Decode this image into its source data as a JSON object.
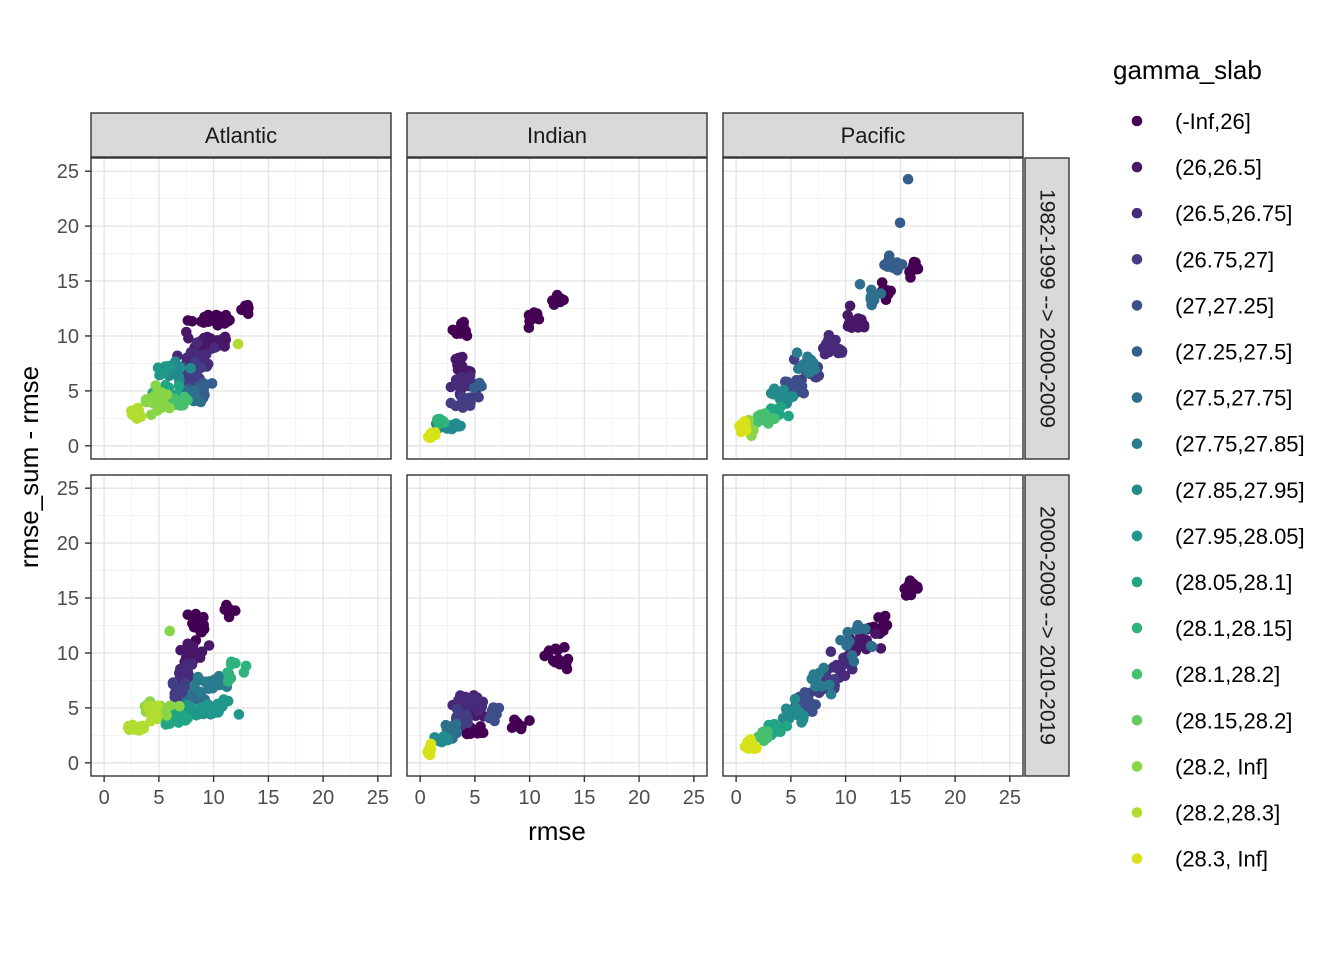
{
  "chart_data": {
    "type": "scatter",
    "facets": {
      "columns": [
        "Atlantic",
        "Indian",
        "Pacific"
      ],
      "rows": [
        "1982-1999 --> 2000-2009",
        "2000-2009 --> 2010-2019"
      ]
    },
    "xlabel": "rmse",
    "ylabel": "rmse_sum - rmse",
    "xlim": [
      -1.2,
      26.2
    ],
    "ylim": [
      -1.2,
      26.2
    ],
    "x_ticks": [
      0,
      5,
      10,
      15,
      20,
      25
    ],
    "y_ticks": [
      0,
      5,
      10,
      15,
      20,
      25
    ],
    "x_tick_labels": [
      "0",
      "5",
      "10",
      "15",
      "20",
      "25"
    ],
    "y_tick_labels": [
      "0",
      "5",
      "10",
      "15",
      "20",
      "25"
    ],
    "grid": true,
    "legend": {
      "title": "gamma_slab",
      "position": "right",
      "entries": [
        {
          "label": "(-Inf,26]",
          "color": "#440154"
        },
        {
          "label": "(26,26.5]",
          "color": "#481768"
        },
        {
          "label": "(26.5,26.75]",
          "color": "#472A7A"
        },
        {
          "label": "(26.75,27]",
          "color": "#433D84"
        },
        {
          "label": "(27,27.25]",
          "color": "#3C4F8A"
        },
        {
          "label": "(27.25,27.5]",
          "color": "#355E8D"
        },
        {
          "label": "(27.5,27.75]",
          "color": "#2E6F8E"
        },
        {
          "label": "(27.75,27.85]",
          "color": "#297B8E"
        },
        {
          "label": "(27.85,27.95]",
          "color": "#238A8D"
        },
        {
          "label": "(27.95,28.05]",
          "color": "#1F978B"
        },
        {
          "label": "(28.05,28.1]",
          "color": "#21A585"
        },
        {
          "label": "(28.1,28.15]",
          "color": "#2EB37C"
        },
        {
          "label": "(28.1,28.2]",
          "color": "#46C06F"
        },
        {
          "label": "(28.15,28.2]",
          "color": "#65CB5E"
        },
        {
          "label": "(28.2, Inf]",
          "color": "#89D548"
        },
        {
          "label": "(28.2,28.3]",
          "color": "#B0DD2F"
        },
        {
          "label": "(28.3, Inf]",
          "color": "#D8E219"
        }
      ],
      "last_color": "#FDE725"
    },
    "panels": [
      {
        "col": 0,
        "row": 0,
        "clusters": [
          {
            "g": 0,
            "cx": 10.0,
            "cy": 11.5,
            "sx": 2.0,
            "sy": 0.5,
            "n": 28
          },
          {
            "g": 0,
            "cx": 12.8,
            "cy": 12.6,
            "sx": 0.7,
            "sy": 0.6,
            "n": 8
          },
          {
            "g": 1,
            "cx": 9.5,
            "cy": 9.5,
            "sx": 1.5,
            "sy": 0.8,
            "n": 22
          },
          {
            "g": 2,
            "cx": 8.5,
            "cy": 8.0,
            "sx": 1.4,
            "sy": 1.0,
            "n": 24
          },
          {
            "g": 3,
            "cx": 8.0,
            "cy": 6.5,
            "sx": 1.2,
            "sy": 1.0,
            "n": 18
          },
          {
            "g": 5,
            "cx": 8.5,
            "cy": 5.0,
            "sx": 1.2,
            "sy": 0.8,
            "n": 18
          },
          {
            "g": 6,
            "cx": 7.5,
            "cy": 4.5,
            "sx": 1.4,
            "sy": 0.8,
            "n": 18
          },
          {
            "g": 8,
            "cx": 6.5,
            "cy": 6.8,
            "sx": 0.8,
            "sy": 0.6,
            "n": 16
          },
          {
            "g": 9,
            "cx": 5.5,
            "cy": 7.0,
            "sx": 0.7,
            "sy": 0.4,
            "n": 16
          },
          {
            "g": 10,
            "cx": 6.0,
            "cy": 5.0,
            "sx": 1.0,
            "sy": 0.8,
            "n": 16
          },
          {
            "g": 12,
            "cx": 6.5,
            "cy": 4.0,
            "sx": 1.2,
            "sy": 0.6,
            "n": 14
          },
          {
            "g": 14,
            "cx": 4.8,
            "cy": 4.0,
            "sx": 1.2,
            "sy": 1.0,
            "n": 22
          },
          {
            "g": 15,
            "cx": 3.2,
            "cy": 3.0,
            "sx": 0.6,
            "sy": 0.6,
            "n": 8
          },
          {
            "g": 15,
            "cx": 12.2,
            "cy": 9.3,
            "sx": 0.1,
            "sy": 0.1,
            "n": 1
          }
        ]
      },
      {
        "col": 1,
        "row": 0,
        "clusters": [
          {
            "g": 0,
            "cx": 3.8,
            "cy": 10.5,
            "sx": 0.6,
            "sy": 0.8,
            "n": 14
          },
          {
            "g": 0,
            "cx": 10.5,
            "cy": 11.5,
            "sx": 0.7,
            "sy": 0.6,
            "n": 8
          },
          {
            "g": 0,
            "cx": 12.5,
            "cy": 13.5,
            "sx": 0.7,
            "sy": 0.8,
            "n": 8
          },
          {
            "g": 1,
            "cx": 3.8,
            "cy": 7.5,
            "sx": 0.7,
            "sy": 0.8,
            "n": 14
          },
          {
            "g": 2,
            "cx": 4.0,
            "cy": 5.5,
            "sx": 0.9,
            "sy": 0.8,
            "n": 18
          },
          {
            "g": 3,
            "cx": 4.2,
            "cy": 4.0,
            "sx": 1.0,
            "sy": 0.7,
            "n": 16
          },
          {
            "g": 5,
            "cx": 5.5,
            "cy": 5.5,
            "sx": 0.4,
            "sy": 0.5,
            "n": 4
          },
          {
            "g": 8,
            "cx": 2.8,
            "cy": 1.8,
            "sx": 1.0,
            "sy": 0.5,
            "n": 16
          },
          {
            "g": 11,
            "cx": 2.0,
            "cy": 2.2,
            "sx": 0.5,
            "sy": 0.4,
            "n": 8
          },
          {
            "g": 16,
            "cx": 1.1,
            "cy": 1.0,
            "sx": 0.4,
            "sy": 0.3,
            "n": 12
          }
        ]
      },
      {
        "col": 2,
        "row": 0,
        "clusters": [
          {
            "g": 0,
            "cx": 16.2,
            "cy": 16.0,
            "sx": 0.7,
            "sy": 0.7,
            "n": 14
          },
          {
            "g": 0,
            "cx": 13.5,
            "cy": 14.0,
            "sx": 0.6,
            "sy": 0.6,
            "n": 8
          },
          {
            "g": 1,
            "cx": 11.0,
            "cy": 11.5,
            "sx": 1.0,
            "sy": 0.8,
            "n": 16
          },
          {
            "g": 2,
            "cx": 9.0,
            "cy": 9.0,
            "sx": 1.2,
            "sy": 1.0,
            "n": 18
          },
          {
            "g": 3,
            "cx": 7.0,
            "cy": 7.0,
            "sx": 1.2,
            "sy": 1.0,
            "n": 18
          },
          {
            "g": 4,
            "cx": 5.5,
            "cy": 5.0,
            "sx": 1.0,
            "sy": 0.8,
            "n": 16
          },
          {
            "g": 5,
            "cx": 14.0,
            "cy": 16.5,
            "sx": 1.2,
            "sy": 0.8,
            "n": 12
          },
          {
            "g": 5,
            "cx": 15.7,
            "cy": 24.3,
            "sx": 0.05,
            "sy": 0.05,
            "n": 1
          },
          {
            "g": 5,
            "cx": 15.0,
            "cy": 20.3,
            "sx": 0.05,
            "sy": 0.05,
            "n": 1
          },
          {
            "g": 6,
            "cx": 12.5,
            "cy": 14.0,
            "sx": 0.8,
            "sy": 1.2,
            "n": 10
          },
          {
            "g": 7,
            "cx": 6.5,
            "cy": 7.5,
            "sx": 1.2,
            "sy": 0.8,
            "n": 14
          },
          {
            "g": 8,
            "cx": 4.5,
            "cy": 4.5,
            "sx": 1.0,
            "sy": 0.7,
            "n": 16
          },
          {
            "g": 10,
            "cx": 3.5,
            "cy": 3.0,
            "sx": 0.8,
            "sy": 0.6,
            "n": 14
          },
          {
            "g": 12,
            "cx": 2.5,
            "cy": 2.5,
            "sx": 0.7,
            "sy": 0.6,
            "n": 12
          },
          {
            "g": 14,
            "cx": 1.3,
            "cy": 1.5,
            "sx": 0.4,
            "sy": 0.5,
            "n": 10
          },
          {
            "g": 16,
            "cx": 0.7,
            "cy": 1.8,
            "sx": 0.4,
            "sy": 0.6,
            "n": 14
          }
        ]
      },
      {
        "col": 0,
        "row": 1,
        "clusters": [
          {
            "g": 0,
            "cx": 8.5,
            "cy": 12.5,
            "sx": 1.0,
            "sy": 1.2,
            "n": 20
          },
          {
            "g": 0,
            "cx": 11.5,
            "cy": 14.0,
            "sx": 0.8,
            "sy": 0.4,
            "n": 6
          },
          {
            "g": 1,
            "cx": 8.0,
            "cy": 10.0,
            "sx": 1.0,
            "sy": 1.2,
            "n": 18
          },
          {
            "g": 2,
            "cx": 7.5,
            "cy": 8.0,
            "sx": 1.0,
            "sy": 1.0,
            "n": 18
          },
          {
            "g": 3,
            "cx": 7.0,
            "cy": 6.5,
            "sx": 1.0,
            "sy": 0.9,
            "n": 16
          },
          {
            "g": 6,
            "cx": 8.5,
            "cy": 5.5,
            "sx": 1.4,
            "sy": 1.0,
            "n": 20
          },
          {
            "g": 7,
            "cx": 10.0,
            "cy": 7.0,
            "sx": 1.8,
            "sy": 0.8,
            "n": 20
          },
          {
            "g": 9,
            "cx": 9.5,
            "cy": 5.0,
            "sx": 2.2,
            "sy": 0.9,
            "n": 28
          },
          {
            "g": 10,
            "cx": 6.5,
            "cy": 4.0,
            "sx": 1.2,
            "sy": 0.5,
            "n": 18
          },
          {
            "g": 11,
            "cx": 12.0,
            "cy": 8.5,
            "sx": 0.8,
            "sy": 0.8,
            "n": 8
          },
          {
            "g": 14,
            "cx": 5.0,
            "cy": 5.0,
            "sx": 1.2,
            "sy": 1.0,
            "n": 18
          },
          {
            "g": 14,
            "cx": 6.0,
            "cy": 12.0,
            "sx": 0.05,
            "sy": 0.05,
            "n": 1
          },
          {
            "g": 15,
            "cx": 3.0,
            "cy": 3.3,
            "sx": 0.7,
            "sy": 0.5,
            "n": 10
          },
          {
            "g": 15,
            "cx": 4.5,
            "cy": 4.5,
            "sx": 0.8,
            "sy": 0.7,
            "n": 10
          }
        ]
      },
      {
        "col": 1,
        "row": 1,
        "clusters": [
          {
            "g": 0,
            "cx": 5.0,
            "cy": 3.0,
            "sx": 1.2,
            "sy": 0.5,
            "n": 16
          },
          {
            "g": 0,
            "cx": 12.5,
            "cy": 9.5,
            "sx": 1.4,
            "sy": 0.9,
            "n": 14
          },
          {
            "g": 0,
            "cx": 9.0,
            "cy": 3.5,
            "sx": 0.8,
            "sy": 0.6,
            "n": 8
          },
          {
            "g": 1,
            "cx": 5.0,
            "cy": 5.0,
            "sx": 1.2,
            "sy": 0.8,
            "n": 18
          },
          {
            "g": 2,
            "cx": 4.5,
            "cy": 5.5,
            "sx": 1.2,
            "sy": 0.8,
            "n": 16
          },
          {
            "g": 3,
            "cx": 3.5,
            "cy": 4.0,
            "sx": 1.0,
            "sy": 0.7,
            "n": 16
          },
          {
            "g": 4,
            "cx": 7.0,
            "cy": 4.5,
            "sx": 0.8,
            "sy": 0.8,
            "n": 8
          },
          {
            "g": 6,
            "cx": 3.0,
            "cy": 3.0,
            "sx": 0.8,
            "sy": 0.6,
            "n": 14
          },
          {
            "g": 8,
            "cx": 2.0,
            "cy": 2.0,
            "sx": 0.6,
            "sy": 0.5,
            "n": 12
          },
          {
            "g": 16,
            "cx": 0.9,
            "cy": 1.1,
            "sx": 0.4,
            "sy": 0.4,
            "n": 12
          }
        ]
      },
      {
        "col": 2,
        "row": 1,
        "clusters": [
          {
            "g": 0,
            "cx": 16.0,
            "cy": 16.0,
            "sx": 0.8,
            "sy": 0.7,
            "n": 14
          },
          {
            "g": 0,
            "cx": 13.0,
            "cy": 12.5,
            "sx": 1.0,
            "sy": 1.0,
            "n": 12
          },
          {
            "g": 1,
            "cx": 11.5,
            "cy": 10.5,
            "sx": 1.2,
            "sy": 1.2,
            "n": 16
          },
          {
            "g": 2,
            "cx": 9.5,
            "cy": 8.5,
            "sx": 1.2,
            "sy": 1.2,
            "n": 16
          },
          {
            "g": 3,
            "cx": 8.0,
            "cy": 7.0,
            "sx": 1.2,
            "sy": 1.0,
            "n": 16
          },
          {
            "g": 4,
            "cx": 6.5,
            "cy": 5.5,
            "sx": 1.0,
            "sy": 1.0,
            "n": 16
          },
          {
            "g": 6,
            "cx": 10.5,
            "cy": 11.0,
            "sx": 1.2,
            "sy": 1.2,
            "n": 12
          },
          {
            "g": 7,
            "cx": 7.5,
            "cy": 7.5,
            "sx": 1.2,
            "sy": 1.0,
            "n": 12
          },
          {
            "g": 8,
            "cx": 5.0,
            "cy": 4.5,
            "sx": 1.0,
            "sy": 1.0,
            "n": 16
          },
          {
            "g": 10,
            "cx": 3.5,
            "cy": 3.0,
            "sx": 0.8,
            "sy": 0.7,
            "n": 14
          },
          {
            "g": 12,
            "cx": 2.5,
            "cy": 2.5,
            "sx": 0.6,
            "sy": 0.6,
            "n": 12
          },
          {
            "g": 16,
            "cx": 1.3,
            "cy": 1.5,
            "sx": 0.5,
            "sy": 0.6,
            "n": 16
          }
        ]
      }
    ]
  }
}
